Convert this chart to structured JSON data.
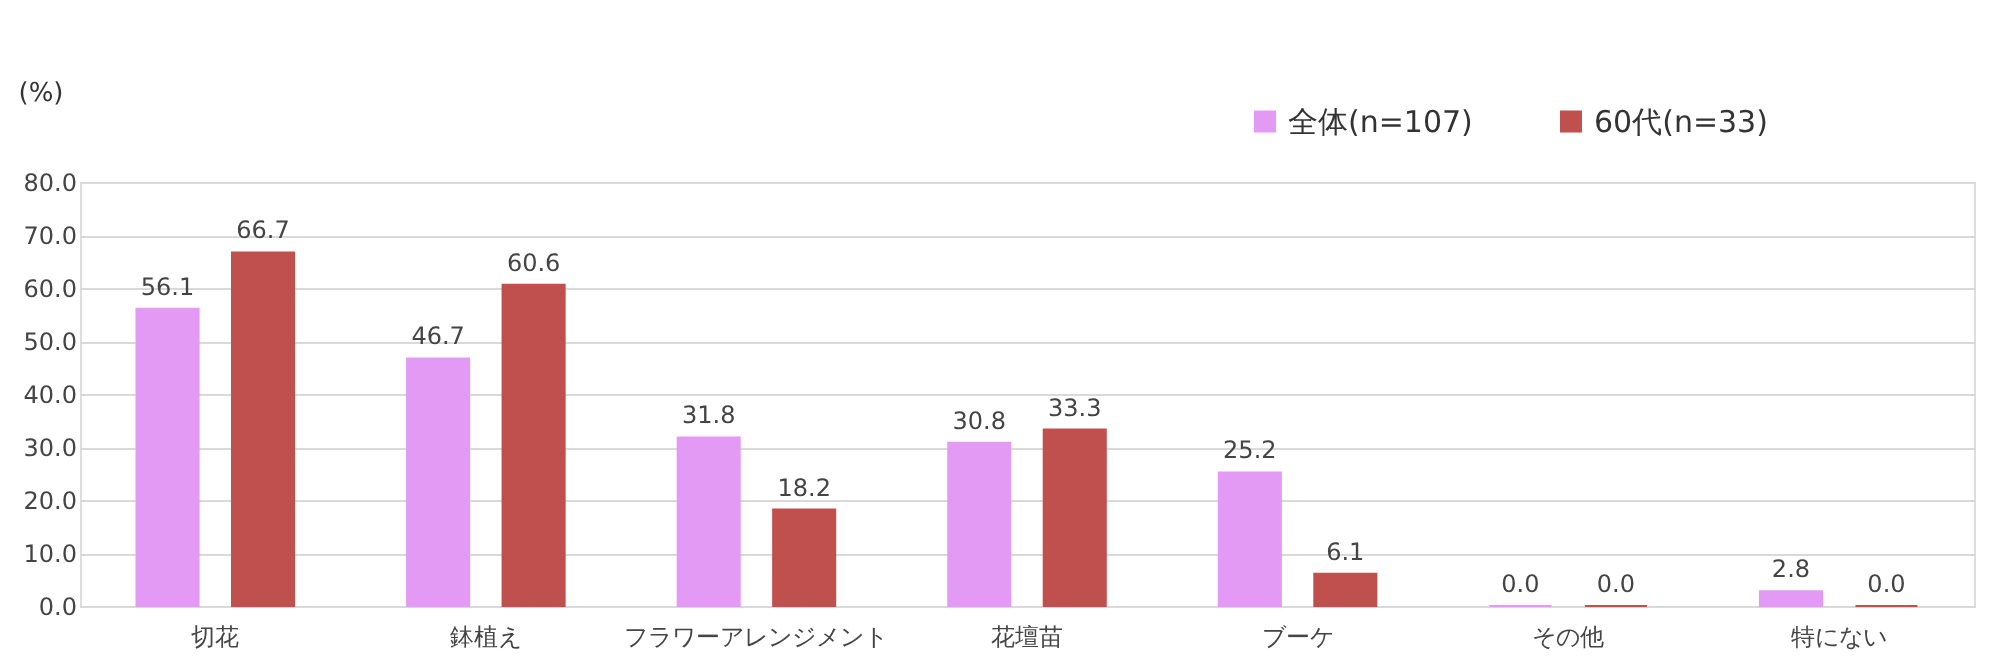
{
  "chart_data": {
    "type": "bar",
    "ylabel": "(%)",
    "categories": [
      "切花",
      "鉢植え",
      "フラワーアレンジメント",
      "花壇苗",
      "ブーケ",
      "その他",
      "特にない"
    ],
    "series": [
      {
        "name": "全体(n=107)",
        "color": "#e39af5",
        "values": [
          56.1,
          46.7,
          31.8,
          30.8,
          25.2,
          0.0,
          2.8
        ],
        "value_labels": [
          "56.1",
          "46.7",
          "31.8",
          "30.8",
          "25.2",
          "0.0",
          "2.8"
        ]
      },
      {
        "name": "60代(n=33)",
        "color": "#c0504d",
        "values": [
          66.7,
          60.6,
          18.2,
          33.3,
          6.1,
          0.0,
          0.0
        ],
        "value_labels": [
          "66.7",
          "60.6",
          "18.2",
          "33.3",
          "6.1",
          "0.0",
          "0.0"
        ]
      }
    ],
    "ylim": [
      0,
      80
    ],
    "yticks": [
      {
        "value": 0,
        "label": "0.0"
      },
      {
        "value": 10,
        "label": "10.0"
      },
      {
        "value": 20,
        "label": "20.0"
      },
      {
        "value": 30,
        "label": "30.0"
      },
      {
        "value": 40,
        "label": "40.0"
      },
      {
        "value": 50,
        "label": "50.0"
      },
      {
        "value": 60,
        "label": "60.0"
      },
      {
        "value": 70,
        "label": "70.0"
      },
      {
        "value": 80,
        "label": "80.0"
      }
    ],
    "grid": "y",
    "legend": "top right"
  }
}
